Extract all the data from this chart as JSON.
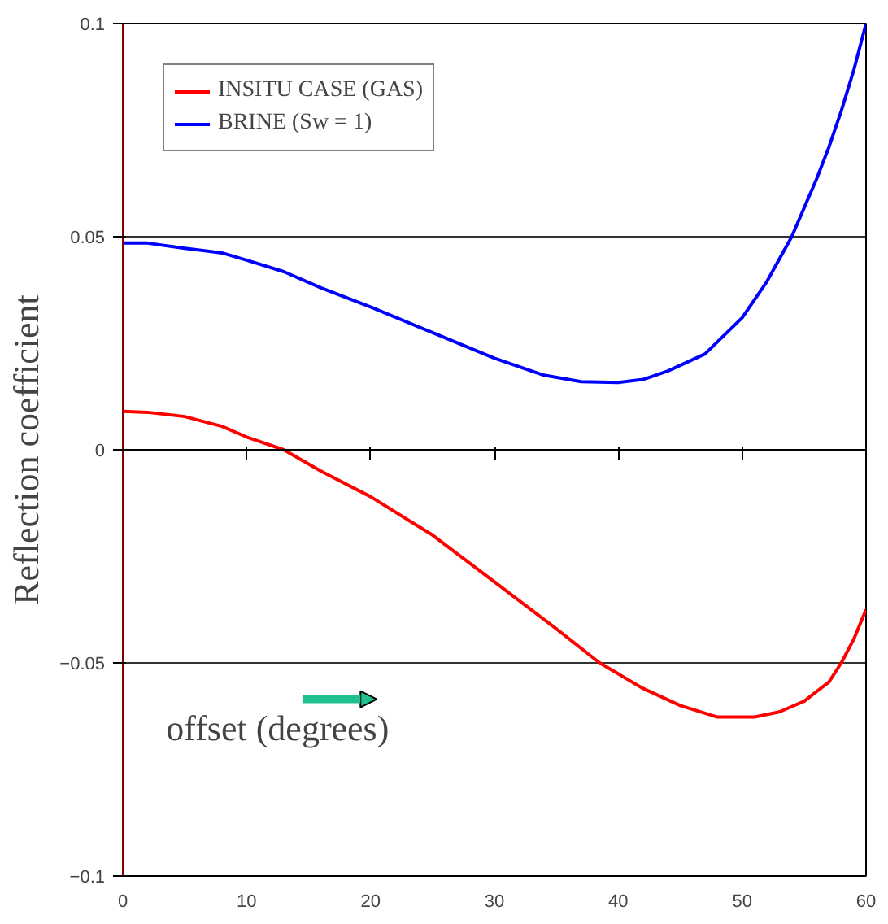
{
  "chart_data": {
    "type": "line",
    "xlabel": "offset (degrees)",
    "ylabel": "Reflection coefficient",
    "xlim": [
      0,
      60
    ],
    "xticks": [
      0,
      10,
      20,
      30,
      40,
      50,
      60
    ],
    "ylim": [
      -0.1,
      0.1
    ],
    "yticks": [
      -0.1,
      -0.05,
      0,
      0.05,
      0.1
    ],
    "grid": "y",
    "legend": "top left",
    "marker": "none",
    "line_style": "solid",
    "series": [
      {
        "name": "INSITU CASE (GAS)",
        "color": "#ff0000",
        "x": [
          0,
          2,
          5,
          8,
          10,
          13,
          16,
          20,
          25,
          30,
          35,
          38.5,
          42,
          45,
          48,
          51,
          53,
          55,
          57,
          58,
          59,
          60
        ],
        "values": [
          0.009,
          0.0088,
          0.0078,
          0.0055,
          0.003,
          0,
          -0.005,
          -0.011,
          -0.02,
          -0.031,
          -0.042,
          -0.05,
          -0.056,
          -0.06,
          -0.0627,
          -0.0627,
          -0.0615,
          -0.059,
          -0.0545,
          -0.05,
          -0.0445,
          -0.0375
        ]
      },
      {
        "name": "BRINE (Sw = 1)",
        "color": "#0000ff",
        "x": [
          0,
          2,
          5,
          8,
          10,
          13,
          16,
          20,
          25,
          30,
          34,
          37,
          40,
          42,
          44,
          47,
          50,
          52,
          54,
          56,
          57,
          58,
          59,
          60
        ],
        "values": [
          0.0485,
          0.0485,
          0.0473,
          0.0462,
          0.0445,
          0.0418,
          0.038,
          0.0335,
          0.0275,
          0.0215,
          0.0175,
          0.016,
          0.0158,
          0.0165,
          0.0185,
          0.0225,
          0.031,
          0.0395,
          0.05,
          0.0635,
          0.071,
          0.0795,
          0.089,
          0.1
        ]
      }
    ]
  }
}
